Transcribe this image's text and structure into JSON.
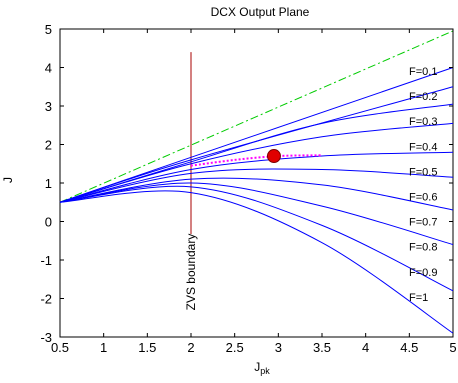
{
  "chart_data": {
    "type": "line",
    "title": "DCX Output Plane",
    "xlabel": "J",
    "xlabel_subscript": "pk",
    "ylabel": "J",
    "xlim": [
      0.5,
      5
    ],
    "ylim": [
      -3,
      5
    ],
    "xticks": [
      0.5,
      1,
      1.5,
      2,
      2.5,
      3,
      3.5,
      4,
      4.5,
      5
    ],
    "xtick_labels": [
      "0.5",
      "1",
      "1.5",
      "2",
      "2.5",
      "3",
      "3.5",
      "4",
      "4.5",
      "5"
    ],
    "yticks": [
      -3,
      -2,
      -1,
      0,
      1,
      2,
      3,
      4,
      5
    ],
    "ytick_labels": [
      "-3",
      "-2",
      "-1",
      "0",
      "1",
      "2",
      "3",
      "4",
      "5"
    ],
    "grid": false,
    "colors": {
      "curves": "#0000ff",
      "envelope": "#00cc00",
      "boundary": "#aa0000",
      "operating_trace": "#ff00ff",
      "operating_point": "#e00000"
    },
    "series": [
      {
        "label": "F=0.1",
        "x": [
          0.5,
          5
        ],
        "y": [
          0.5,
          4.0
        ]
      },
      {
        "label": "F=0.2",
        "x": [
          0.5,
          2,
          5
        ],
        "y": [
          0.5,
          1.6,
          3.5
        ]
      },
      {
        "label": "F=0.3",
        "x": [
          0.5,
          2,
          3.5,
          5
        ],
        "y": [
          0.5,
          1.55,
          2.55,
          3.05
        ]
      },
      {
        "label": "F=0.4",
        "x": [
          0.5,
          2,
          3.5,
          5
        ],
        "y": [
          0.5,
          1.5,
          2.2,
          2.55
        ]
      },
      {
        "label": "F=0.5",
        "x": [
          0.5,
          2,
          3.5,
          5
        ],
        "y": [
          0.5,
          1.35,
          1.7,
          1.8
        ]
      },
      {
        "label": "F=0.6",
        "x": [
          0.5,
          2,
          3.5,
          5
        ],
        "y": [
          0.5,
          1.25,
          1.35,
          1.15
        ]
      },
      {
        "label": "F=0.7",
        "x": [
          0.5,
          2,
          3.5,
          5
        ],
        "y": [
          0.5,
          1.1,
          0.95,
          0.3
        ]
      },
      {
        "label": "F=0.8",
        "x": [
          0.5,
          2,
          3.5,
          5
        ],
        "y": [
          0.5,
          1.0,
          0.4,
          -0.6
        ]
      },
      {
        "label": "F=0.9",
        "x": [
          0.5,
          2,
          3.5,
          5
        ],
        "y": [
          0.5,
          0.9,
          -0.1,
          -1.8
        ]
      },
      {
        "label": "F=1",
        "x": [
          0.5,
          2,
          3.5,
          5
        ],
        "y": [
          0.5,
          0.75,
          -0.55,
          -2.9
        ]
      }
    ],
    "envelope": {
      "style": "dash-dot",
      "x": [
        0.5,
        5
      ],
      "y": [
        0.5,
        4.95
      ]
    },
    "zvs_boundary": {
      "x": 2,
      "y_range": [
        -2.3,
        4.4
      ],
      "label": "ZVS boundary"
    },
    "operating_trace": {
      "style": "dotted",
      "x": [
        2.0,
        2.5,
        3.0,
        3.5
      ],
      "y": [
        1.45,
        1.6,
        1.7,
        1.72
      ]
    },
    "operating_point": {
      "x": 2.95,
      "y": 1.7
    }
  }
}
